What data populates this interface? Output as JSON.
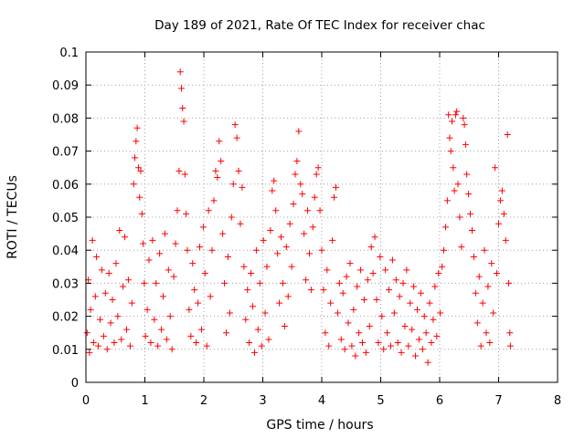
{
  "chart_data": {
    "type": "scatter",
    "title": "Day 189 of 2021, Rate Of TEC Index for receiver chac",
    "xlabel": "GPS time / hours",
    "ylabel": "ROTI / TECUs",
    "xlim": [
      0,
      8
    ],
    "ylim": [
      0,
      0.1
    ],
    "x_ticks": [
      "0",
      "1",
      "2",
      "3",
      "4",
      "5",
      "6",
      "7",
      "8"
    ],
    "y_ticks": [
      "0",
      "0.01",
      "0.02",
      "0.03",
      "0.04",
      "0.05",
      "0.06",
      "0.07",
      "0.08",
      "0.09",
      "0.1"
    ],
    "grid": true,
    "marker": "plus",
    "color": "#ff0000",
    "series": [
      {
        "points": [
          [
            0.02,
            0.015
          ],
          [
            0.04,
            0.031
          ],
          [
            0.06,
            0.009
          ],
          [
            0.08,
            0.022
          ],
          [
            0.11,
            0.043
          ],
          [
            0.13,
            0.012
          ],
          [
            0.16,
            0.026
          ],
          [
            0.18,
            0.038
          ],
          [
            0.21,
            0.011
          ],
          [
            0.24,
            0.019
          ],
          [
            0.27,
            0.034
          ],
          [
            0.3,
            0.014
          ],
          [
            0.33,
            0.027
          ],
          [
            0.36,
            0.01
          ],
          [
            0.39,
            0.033
          ],
          [
            0.42,
            0.018
          ],
          [
            0.45,
            0.025
          ],
          [
            0.48,
            0.012
          ],
          [
            0.51,
            0.036
          ],
          [
            0.54,
            0.02
          ],
          [
            0.57,
            0.046
          ],
          [
            0.6,
            0.013
          ],
          [
            0.63,
            0.029
          ],
          [
            0.66,
            0.044
          ],
          [
            0.69,
            0.016
          ],
          [
            0.72,
            0.031
          ],
          [
            0.75,
            0.011
          ],
          [
            0.78,
            0.024
          ],
          [
            0.81,
            0.06
          ],
          [
            0.83,
            0.068
          ],
          [
            0.85,
            0.073
          ],
          [
            0.87,
            0.077
          ],
          [
            0.89,
            0.065
          ],
          [
            0.91,
            0.056
          ],
          [
            0.93,
            0.064
          ],
          [
            0.95,
            0.051
          ],
          [
            0.97,
            0.042
          ],
          [
            0.99,
            0.03
          ],
          [
            1.01,
            0.014
          ],
          [
            1.04,
            0.022
          ],
          [
            1.07,
            0.037
          ],
          [
            1.1,
            0.012
          ],
          [
            1.13,
            0.043
          ],
          [
            1.16,
            0.019
          ],
          [
            1.19,
            0.03
          ],
          [
            1.22,
            0.011
          ],
          [
            1.25,
            0.039
          ],
          [
            1.28,
            0.016
          ],
          [
            1.31,
            0.026
          ],
          [
            1.34,
            0.045
          ],
          [
            1.37,
            0.013
          ],
          [
            1.4,
            0.034
          ],
          [
            1.43,
            0.02
          ],
          [
            1.46,
            0.01
          ],
          [
            1.49,
            0.032
          ],
          [
            1.52,
            0.042
          ],
          [
            1.55,
            0.052
          ],
          [
            1.58,
            0.064
          ],
          [
            1.6,
            0.094
          ],
          [
            1.62,
            0.089
          ],
          [
            1.64,
            0.083
          ],
          [
            1.66,
            0.079
          ],
          [
            1.68,
            0.063
          ],
          [
            1.7,
            0.051
          ],
          [
            1.72,
            0.04
          ],
          [
            1.75,
            0.022
          ],
          [
            1.78,
            0.014
          ],
          [
            1.81,
            0.036
          ],
          [
            1.84,
            0.028
          ],
          [
            1.87,
            0.012
          ],
          [
            1.9,
            0.024
          ],
          [
            1.93,
            0.041
          ],
          [
            1.96,
            0.016
          ],
          [
            1.99,
            0.047
          ],
          [
            2.02,
            0.033
          ],
          [
            2.05,
            0.011
          ],
          [
            2.08,
            0.052
          ],
          [
            2.11,
            0.026
          ],
          [
            2.14,
            0.04
          ],
          [
            2.17,
            0.055
          ],
          [
            2.2,
            0.064
          ],
          [
            2.23,
            0.062
          ],
          [
            2.26,
            0.073
          ],
          [
            2.29,
            0.067
          ],
          [
            2.32,
            0.045
          ],
          [
            2.35,
            0.03
          ],
          [
            2.38,
            0.015
          ],
          [
            2.41,
            0.038
          ],
          [
            2.44,
            0.021
          ],
          [
            2.47,
            0.05
          ],
          [
            2.5,
            0.06
          ],
          [
            2.53,
            0.078
          ],
          [
            2.56,
            0.074
          ],
          [
            2.59,
            0.064
          ],
          [
            2.62,
            0.048
          ],
          [
            2.65,
            0.059
          ],
          [
            2.68,
            0.035
          ],
          [
            2.71,
            0.019
          ],
          [
            2.74,
            0.028
          ],
          [
            2.77,
            0.012
          ],
          [
            2.8,
            0.033
          ],
          [
            2.83,
            0.023
          ],
          [
            2.86,
            0.009
          ],
          [
            2.89,
            0.04
          ],
          [
            2.92,
            0.016
          ],
          [
            2.95,
            0.03
          ],
          [
            2.98,
            0.011
          ],
          [
            3.01,
            0.043
          ],
          [
            3.04,
            0.021
          ],
          [
            3.07,
            0.035
          ],
          [
            3.1,
            0.013
          ],
          [
            3.13,
            0.046
          ],
          [
            3.16,
            0.058
          ],
          [
            3.19,
            0.061
          ],
          [
            3.22,
            0.052
          ],
          [
            3.25,
            0.039
          ],
          [
            3.28,
            0.024
          ],
          [
            3.31,
            0.044
          ],
          [
            3.34,
            0.03
          ],
          [
            3.37,
            0.017
          ],
          [
            3.4,
            0.041
          ],
          [
            3.43,
            0.026
          ],
          [
            3.46,
            0.048
          ],
          [
            3.49,
            0.035
          ],
          [
            3.52,
            0.054
          ],
          [
            3.55,
            0.063
          ],
          [
            3.58,
            0.067
          ],
          [
            3.61,
            0.076
          ],
          [
            3.64,
            0.06
          ],
          [
            3.67,
            0.057
          ],
          [
            3.7,
            0.045
          ],
          [
            3.73,
            0.031
          ],
          [
            3.76,
            0.052
          ],
          [
            3.79,
            0.039
          ],
          [
            3.82,
            0.028
          ],
          [
            3.85,
            0.047
          ],
          [
            3.88,
            0.056
          ],
          [
            3.91,
            0.063
          ],
          [
            3.94,
            0.065
          ],
          [
            3.97,
            0.052
          ],
          [
            4.0,
            0.04
          ],
          [
            4.03,
            0.028
          ],
          [
            4.06,
            0.015
          ],
          [
            4.09,
            0.034
          ],
          [
            4.12,
            0.011
          ],
          [
            4.15,
            0.024
          ],
          [
            4.18,
            0.043
          ],
          [
            4.21,
            0.056
          ],
          [
            4.24,
            0.059
          ],
          [
            4.27,
            0.021
          ],
          [
            4.3,
            0.03
          ],
          [
            4.33,
            0.013
          ],
          [
            4.36,
            0.027
          ],
          [
            4.39,
            0.01
          ],
          [
            4.42,
            0.032
          ],
          [
            4.45,
            0.018
          ],
          [
            4.48,
            0.036
          ],
          [
            4.51,
            0.011
          ],
          [
            4.54,
            0.022
          ],
          [
            4.57,
            0.008
          ],
          [
            4.6,
            0.029
          ],
          [
            4.63,
            0.015
          ],
          [
            4.66,
            0.034
          ],
          [
            4.69,
            0.012
          ],
          [
            4.72,
            0.025
          ],
          [
            4.75,
            0.009
          ],
          [
            4.78,
            0.031
          ],
          [
            4.81,
            0.017
          ],
          [
            4.84,
            0.041
          ],
          [
            4.87,
            0.033
          ],
          [
            4.9,
            0.044
          ],
          [
            4.93,
            0.025
          ],
          [
            4.96,
            0.012
          ],
          [
            4.99,
            0.038
          ],
          [
            5.02,
            0.02
          ],
          [
            5.05,
            0.01
          ],
          [
            5.08,
            0.034
          ],
          [
            5.11,
            0.015
          ],
          [
            5.14,
            0.028
          ],
          [
            5.17,
            0.011
          ],
          [
            5.2,
            0.037
          ],
          [
            5.23,
            0.021
          ],
          [
            5.26,
            0.031
          ],
          [
            5.29,
            0.012
          ],
          [
            5.32,
            0.026
          ],
          [
            5.35,
            0.009
          ],
          [
            5.38,
            0.03
          ],
          [
            5.41,
            0.017
          ],
          [
            5.44,
            0.034
          ],
          [
            5.47,
            0.011
          ],
          [
            5.5,
            0.024
          ],
          [
            5.53,
            0.016
          ],
          [
            5.56,
            0.029
          ],
          [
            5.59,
            0.008
          ],
          [
            5.62,
            0.022
          ],
          [
            5.65,
            0.013
          ],
          [
            5.68,
            0.027
          ],
          [
            5.71,
            0.01
          ],
          [
            5.74,
            0.02
          ],
          [
            5.77,
            0.015
          ],
          [
            5.8,
            0.006
          ],
          [
            5.83,
            0.024
          ],
          [
            5.86,
            0.012
          ],
          [
            5.89,
            0.019
          ],
          [
            5.92,
            0.029
          ],
          [
            5.95,
            0.014
          ],
          [
            5.98,
            0.033
          ],
          [
            6.01,
            0.021
          ],
          [
            6.04,
            0.035
          ],
          [
            6.07,
            0.04
          ],
          [
            6.1,
            0.047
          ],
          [
            6.13,
            0.055
          ],
          [
            6.15,
            0.081
          ],
          [
            6.17,
            0.074
          ],
          [
            6.19,
            0.07
          ],
          [
            6.21,
            0.079
          ],
          [
            6.23,
            0.065
          ],
          [
            6.25,
            0.058
          ],
          [
            6.27,
            0.081
          ],
          [
            6.29,
            0.082
          ],
          [
            6.31,
            0.06
          ],
          [
            6.34,
            0.05
          ],
          [
            6.37,
            0.041
          ],
          [
            6.4,
            0.08
          ],
          [
            6.42,
            0.078
          ],
          [
            6.44,
            0.072
          ],
          [
            6.46,
            0.063
          ],
          [
            6.49,
            0.057
          ],
          [
            6.52,
            0.051
          ],
          [
            6.55,
            0.046
          ],
          [
            6.58,
            0.038
          ],
          [
            6.61,
            0.027
          ],
          [
            6.64,
            0.018
          ],
          [
            6.67,
            0.032
          ],
          [
            6.7,
            0.011
          ],
          [
            6.73,
            0.024
          ],
          [
            6.76,
            0.04
          ],
          [
            6.79,
            0.015
          ],
          [
            6.82,
            0.029
          ],
          [
            6.85,
            0.012
          ],
          [
            6.88,
            0.036
          ],
          [
            6.91,
            0.021
          ],
          [
            6.94,
            0.065
          ],
          [
            6.97,
            0.033
          ],
          [
            7.0,
            0.048
          ],
          [
            7.03,
            0.055
          ],
          [
            7.06,
            0.058
          ],
          [
            7.09,
            0.051
          ],
          [
            7.12,
            0.043
          ],
          [
            7.15,
            0.075
          ],
          [
            7.17,
            0.03
          ],
          [
            7.19,
            0.015
          ],
          [
            7.2,
            0.011
          ]
        ]
      }
    ]
  }
}
